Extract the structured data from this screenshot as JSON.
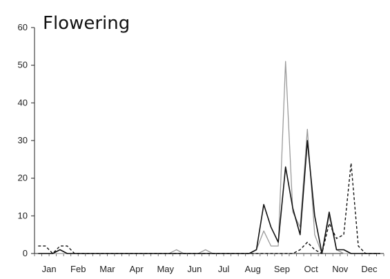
{
  "chart_data": {
    "type": "line",
    "title": "Flowering",
    "xlabel": "",
    "ylabel": "",
    "ylim": [
      0,
      60
    ],
    "yticks": [
      0,
      10,
      20,
      30,
      40,
      50,
      60
    ],
    "month_labels": [
      "Jan",
      "Feb",
      "Mar",
      "Apr",
      "May",
      "Jun",
      "Jul",
      "Aug",
      "Sep",
      "Oct",
      "Nov",
      "Dec"
    ],
    "x": [
      1,
      2,
      3,
      4,
      5,
      6,
      7,
      8,
      9,
      10,
      11,
      12,
      13,
      14,
      15,
      16,
      17,
      18,
      19,
      20,
      21,
      22,
      23,
      24,
      25,
      26,
      27,
      28,
      29,
      30,
      31,
      32,
      33,
      34,
      35,
      36,
      37,
      38,
      39,
      40,
      41,
      42,
      43,
      44,
      45,
      46,
      47,
      48
    ],
    "grid": false,
    "legend": "none",
    "series": [
      {
        "style": "solid",
        "color": "#111111",
        "values": [
          0,
          0,
          0,
          1,
          0,
          0,
          0,
          0,
          0,
          0,
          0,
          0,
          0,
          0,
          0,
          0,
          0,
          0,
          0,
          0,
          0,
          0,
          0,
          0,
          0,
          0,
          0,
          0,
          0,
          0,
          1,
          13,
          7,
          3,
          23,
          12,
          5,
          30,
          10,
          0,
          11,
          1,
          1,
          0,
          0,
          0,
          0,
          0
        ]
      },
      {
        "style": "solid",
        "color": "#9a9a9a",
        "values": [
          0,
          0,
          0,
          0,
          0,
          0,
          0,
          0,
          0,
          0,
          0,
          0,
          0,
          0,
          0,
          0,
          0,
          0,
          0,
          1,
          0,
          0,
          0,
          1,
          0,
          0,
          0,
          0,
          0,
          0,
          1,
          6,
          2,
          2,
          51,
          11,
          7,
          33,
          5,
          0,
          10,
          1,
          0,
          0,
          0,
          0,
          0,
          0
        ]
      },
      {
        "style": "dashed",
        "color": "#111111",
        "values": [
          2,
          2,
          0,
          2,
          2,
          0,
          0,
          0,
          0,
          0,
          0,
          0,
          0,
          0,
          0,
          0,
          0,
          0,
          0,
          0,
          0,
          0,
          0,
          0,
          0,
          0,
          0,
          0,
          0,
          0,
          0,
          0,
          0,
          0,
          0,
          0,
          1,
          3,
          1,
          0,
          8,
          4,
          5,
          24,
          2,
          0,
          0,
          0
        ]
      }
    ]
  }
}
